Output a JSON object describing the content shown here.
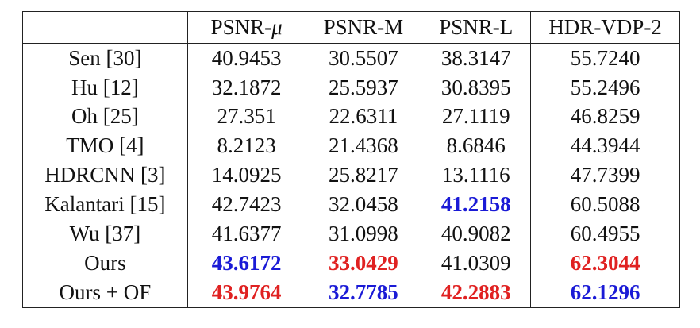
{
  "colors": {
    "best": "#e02121",
    "second_best": "#1a1ad6"
  },
  "table": {
    "headers": [
      "",
      "PSNR-",
      "PSNR-M",
      "PSNR-L",
      "HDR-VDP-2"
    ],
    "header_mu_symbol": "μ",
    "rows": [
      {
        "method": "Sen [30]",
        "values": [
          "40.9453",
          "30.5507",
          "38.3147",
          "55.7240"
        ],
        "highlight": [
          "",
          "",
          "",
          ""
        ]
      },
      {
        "method": "Hu [12]",
        "values": [
          "32.1872",
          "25.5937",
          "30.8395",
          "55.2496"
        ],
        "highlight": [
          "",
          "",
          "",
          ""
        ]
      },
      {
        "method": "Oh [25]",
        "values": [
          "27.351",
          "22.6311",
          "27.1119",
          "46.8259"
        ],
        "highlight": [
          "",
          "",
          "",
          ""
        ]
      },
      {
        "method": "TMO [4]",
        "values": [
          "8.2123",
          "21.4368",
          "8.6846",
          "44.3944"
        ],
        "highlight": [
          "",
          "",
          "",
          ""
        ]
      },
      {
        "method": "HDRCNN [3]",
        "values": [
          "14.0925",
          "25.8217",
          "13.1116",
          "47.7399"
        ],
        "highlight": [
          "",
          "",
          "",
          ""
        ]
      },
      {
        "method": "Kalantari [15]",
        "values": [
          "42.7423",
          "32.0458",
          "41.2158",
          "60.5088"
        ],
        "highlight": [
          "",
          "",
          "second",
          ""
        ]
      },
      {
        "method": "Wu [37]",
        "values": [
          "41.6377",
          "31.0998",
          "40.9082",
          "60.4955"
        ],
        "highlight": [
          "",
          "",
          "",
          ""
        ]
      },
      {
        "method": "Ours",
        "values": [
          "43.6172",
          "33.0429",
          "41.0309",
          "62.3044"
        ],
        "highlight": [
          "second",
          "best",
          "",
          "best"
        ]
      },
      {
        "method": "Ours + OF",
        "values": [
          "43.9764",
          "32.7785",
          "42.2883",
          "62.1296"
        ],
        "highlight": [
          "best",
          "second",
          "best",
          "second"
        ]
      }
    ]
  }
}
